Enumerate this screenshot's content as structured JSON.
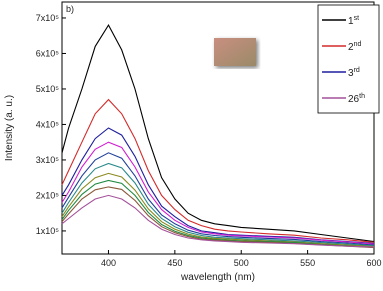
{
  "chart_data": {
    "type": "line",
    "annotation": "b)",
    "x_label": "wavelength (nm)",
    "y_label": "Intensity (a. u.)",
    "x": [
      365,
      370,
      380,
      390,
      400,
      410,
      420,
      430,
      440,
      450,
      460,
      470,
      480,
      490,
      500,
      520,
      540,
      560,
      580,
      600
    ],
    "xlim": [
      365,
      600
    ],
    "xticks": [
      400,
      450,
      500,
      550,
      600
    ],
    "ylim": [
      35000,
      745000
    ],
    "yticks": [
      {
        "value": 100000,
        "label": "1x10⁵"
      },
      {
        "value": 200000,
        "label": "2x10⁵"
      },
      {
        "value": 300000,
        "label": "3x10⁵"
      },
      {
        "value": 400000,
        "label": "4x10⁵"
      },
      {
        "value": 500000,
        "label": "5x10⁵"
      },
      {
        "value": 600000,
        "label": "6x10⁵"
      },
      {
        "value": 700000,
        "label": "7x10⁵"
      }
    ],
    "legend": "upper right",
    "series": [
      {
        "name": "1st",
        "color": "#000000",
        "values": [
          320000,
          390000,
          500000,
          620000,
          680000,
          610000,
          500000,
          360000,
          250000,
          190000,
          150000,
          130000,
          120000,
          115000,
          110000,
          105000,
          100000,
          90000,
          80000,
          70000
        ]
      },
      {
        "name": "2nd",
        "color": "#d42a2a",
        "values": [
          230000,
          270000,
          350000,
          430000,
          470000,
          430000,
          360000,
          270000,
          200000,
          160000,
          130000,
          115000,
          105000,
          100000,
          97000,
          92000,
          88000,
          80000,
          75000,
          68000
        ]
      },
      {
        "name": "3rd",
        "color": "#1f1f9f",
        "values": [
          200000,
          230000,
          300000,
          360000,
          390000,
          370000,
          310000,
          230000,
          170000,
          140000,
          115000,
          100000,
          95000,
          90000,
          88000,
          85000,
          82000,
          75000,
          70000,
          65000
        ]
      },
      {
        "color": "#d020d0",
        "values": [
          180000,
          210000,
          280000,
          330000,
          350000,
          335000,
          280000,
          210000,
          160000,
          130000,
          110000,
          97000,
          92000,
          88000,
          86000,
          83000,
          80000,
          74000,
          69000,
          63000
        ]
      },
      {
        "color": "#20409a",
        "values": [
          165000,
          195000,
          255000,
          300000,
          320000,
          305000,
          255000,
          190000,
          145000,
          120000,
          102000,
          92000,
          87000,
          84000,
          82000,
          79000,
          76000,
          70000,
          66000,
          60000
        ]
      },
      {
        "color": "#2a8a8a",
        "values": [
          150000,
          180000,
          235000,
          275000,
          290000,
          278000,
          235000,
          175000,
          135000,
          112000,
          96000,
          87000,
          82000,
          80000,
          78000,
          75000,
          72000,
          67000,
          63000,
          58000
        ]
      },
      {
        "color": "#8a8a20",
        "values": [
          140000,
          168000,
          218000,
          250000,
          262000,
          252000,
          215000,
          162000,
          126000,
          105000,
          91000,
          83000,
          79000,
          77000,
          75000,
          72000,
          69000,
          64000,
          60000,
          56000
        ]
      },
      {
        "color": "#208a40",
        "values": [
          132000,
          158000,
          203000,
          232000,
          242000,
          234000,
          200000,
          152000,
          118000,
          99000,
          87000,
          80000,
          76000,
          74000,
          72000,
          70000,
          67000,
          62000,
          58000,
          54000
        ]
      },
      {
        "color": "#8a5a3a",
        "values": [
          126000,
          148000,
          190000,
          216000,
          224000,
          217000,
          186000,
          143000,
          112000,
          95000,
          84000,
          77000,
          74000,
          72000,
          70000,
          68000,
          65000,
          61000,
          57000,
          53000
        ]
      },
      {
        "name": "26th",
        "color": "#a4529a",
        "values": [
          120000,
          135000,
          165000,
          190000,
          200000,
          190000,
          165000,
          130000,
          105000,
          90000,
          80000,
          75000,
          72000,
          70000,
          68000,
          66000,
          64000,
          60000,
          57000,
          55000
        ]
      }
    ]
  }
}
